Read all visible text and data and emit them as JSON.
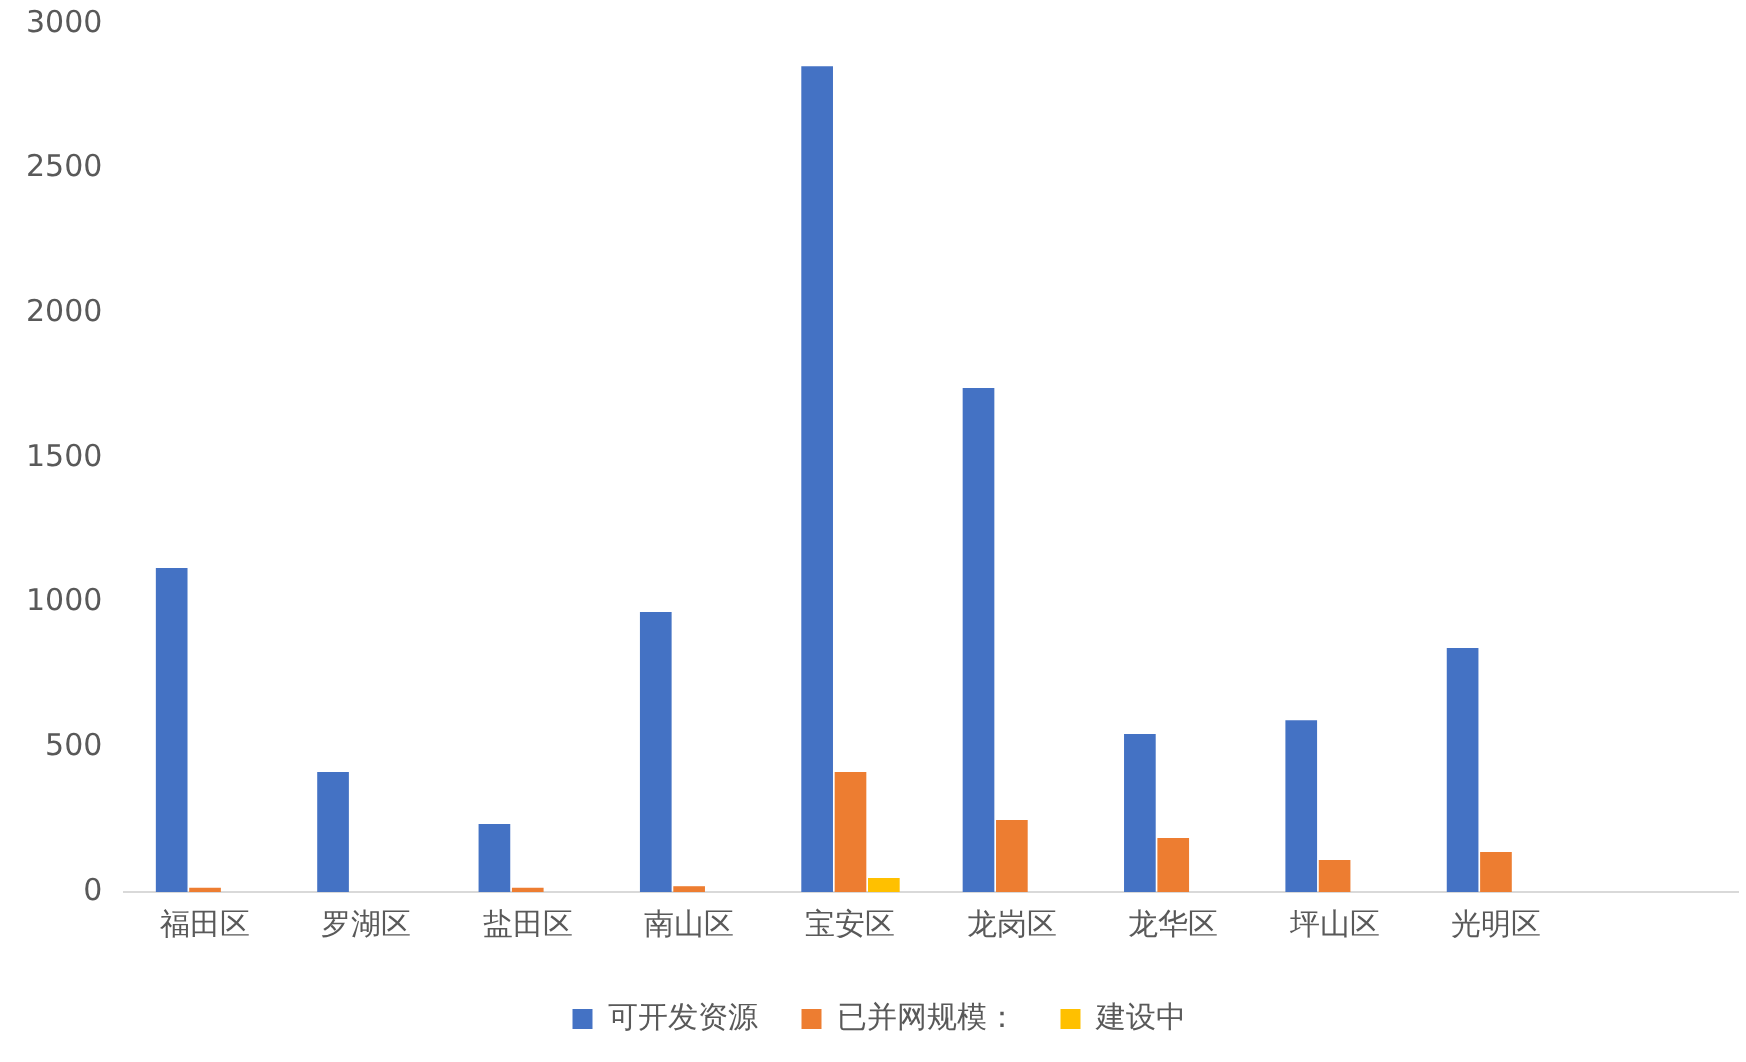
{
  "chart_data": {
    "type": "bar",
    "categories": [
      "福田区",
      "罗湖区",
      "盐田区",
      "南山区",
      "宝安区",
      "龙岗区",
      "龙华区",
      "坪山区",
      "光明区",
      null
    ],
    "series": [
      {
        "name": "可开发资源",
        "color": "#4472c4",
        "values": [
          1120,
          415,
          235,
          968,
          2854,
          1742,
          546,
          594,
          843,
          null
        ]
      },
      {
        "name": "已并网规模：",
        "color": "#ed7d31",
        "values": [
          15,
          null,
          15,
          20,
          415,
          249,
          187,
          111,
          138,
          null
        ]
      },
      {
        "name": "建设中",
        "color": "#ffc000",
        "values": [
          null,
          null,
          null,
          null,
          48,
          null,
          null,
          null,
          null,
          null
        ]
      }
    ],
    "ylim": [
      0,
      3000
    ],
    "yticks": [
      0,
      500,
      1000,
      1500,
      2000,
      2500,
      3000
    ],
    "grid": false,
    "legend": "bottom"
  }
}
